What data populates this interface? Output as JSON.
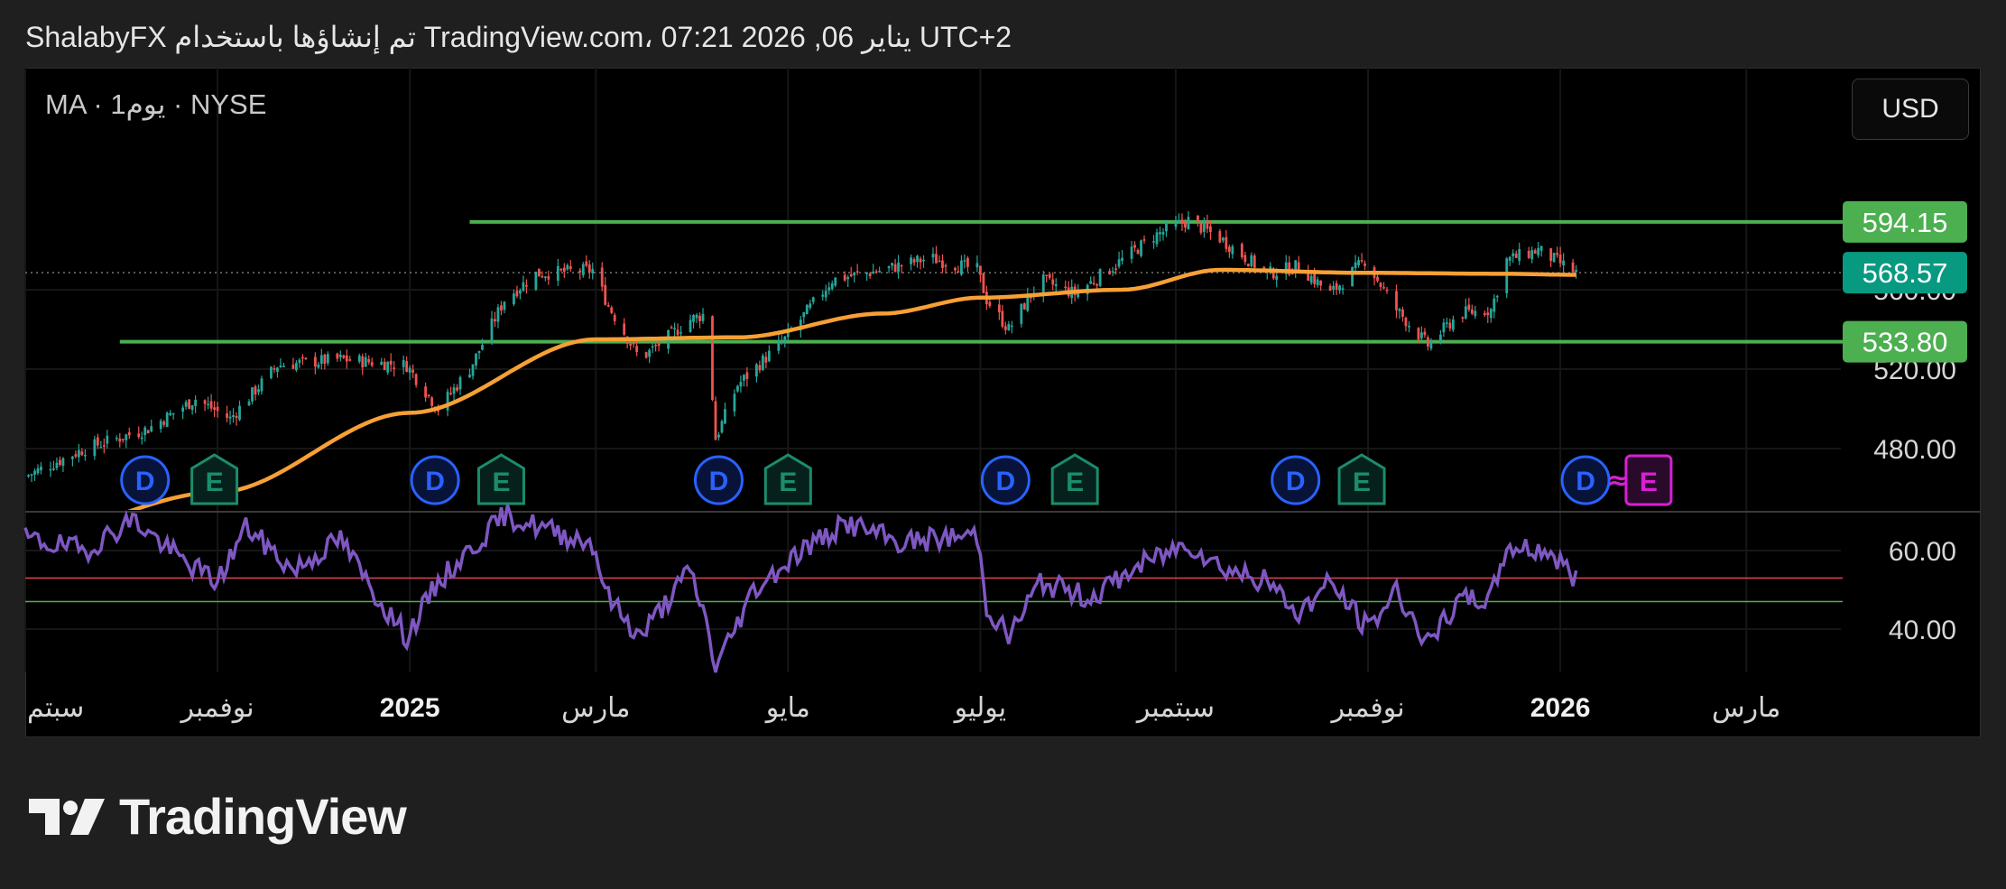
{
  "header": {
    "text": "ShalabyFX تم إنشاؤها باستخدام TradingView.com، 07:21 2026 ,06 يناير UTC+2"
  },
  "symbol": {
    "text": "MA · 1يوم · NYSE"
  },
  "currency": {
    "label": "USD"
  },
  "brand": {
    "name": "TradingView"
  },
  "colors": {
    "up": "#26a69a",
    "down": "#ef5350",
    "ma": "#f7a035",
    "hline": "#4caf50",
    "rsi": "#7e57c2",
    "rsi_upper": "#e0445a",
    "rsi_lower": "#4caf50",
    "current_price_bg": "#089981",
    "level_bg": "#4caf50",
    "dividend": "#2962ff",
    "earnings": "#1b8c6c",
    "earnings_next": "#d81fd6"
  },
  "chart_data": {
    "type": "candlestick",
    "symbol": "MA",
    "interval": "1D",
    "exchange": "NYSE",
    "x_range": [
      "2024-09-01",
      "2026-03-31"
    ],
    "x_ticks": [
      {
        "date": "2024-09-01",
        "label": "سبتم"
      },
      {
        "date": "2024-11-01",
        "label": "نوفمبر"
      },
      {
        "date": "2025-01-01",
        "label": "2025"
      },
      {
        "date": "2025-03-01",
        "label": "مارس"
      },
      {
        "date": "2025-05-01",
        "label": "مايو"
      },
      {
        "date": "2025-07-01",
        "label": "يوليو"
      },
      {
        "date": "2025-09-01",
        "label": "سبتمبر"
      },
      {
        "date": "2025-11-01",
        "label": "نوفمبر"
      },
      {
        "date": "2026-01-01",
        "label": "2026"
      },
      {
        "date": "2026-03-01",
        "label": "مارس"
      }
    ],
    "price_axis": {
      "ticks": [
        480.0,
        520.0,
        560.0
      ],
      "tick_labels": [
        "480.00",
        "520.00",
        "560.00"
      ]
    },
    "price_path": [
      [
        "2024-09-01",
        466
      ],
      [
        "2024-09-20",
        480
      ],
      [
        "2024-10-10",
        490
      ],
      [
        "2024-10-25",
        505
      ],
      [
        "2024-11-05",
        495
      ],
      [
        "2024-11-20",
        522
      ],
      [
        "2024-12-10",
        525
      ],
      [
        "2024-12-31",
        522
      ],
      [
        "2025-01-10",
        500
      ],
      [
        "2025-01-20",
        520
      ],
      [
        "2025-01-31",
        555
      ],
      [
        "2025-02-10",
        568
      ],
      [
        "2025-02-28",
        570
      ],
      [
        "2025-03-05",
        552
      ],
      [
        "2025-03-15",
        525
      ],
      [
        "2025-03-31",
        545
      ],
      [
        "2025-04-05",
        548
      ],
      [
        "2025-04-08",
        485
      ],
      [
        "2025-04-15",
        512
      ],
      [
        "2025-04-30",
        535
      ],
      [
        "2025-05-15",
        565
      ],
      [
        "2025-05-31",
        570
      ],
      [
        "2025-06-15",
        576
      ],
      [
        "2025-06-30",
        570
      ],
      [
        "2025-07-03",
        555
      ],
      [
        "2025-07-10",
        540
      ],
      [
        "2025-07-20",
        565
      ],
      [
        "2025-07-31",
        558
      ],
      [
        "2025-08-15",
        575
      ],
      [
        "2025-08-25",
        587
      ],
      [
        "2025-09-05",
        595
      ],
      [
        "2025-09-15",
        586
      ],
      [
        "2025-09-30",
        568
      ],
      [
        "2025-10-10",
        572
      ],
      [
        "2025-10-20",
        558
      ],
      [
        "2025-10-31",
        575
      ],
      [
        "2025-11-10",
        550
      ],
      [
        "2025-11-20",
        532
      ],
      [
        "2025-11-30",
        548
      ],
      [
        "2025-12-10",
        550
      ],
      [
        "2025-12-15",
        575
      ],
      [
        "2025-12-25",
        580
      ],
      [
        "2026-01-06",
        568.57
      ]
    ],
    "moving_average_path": [
      [
        "2024-09-01",
        436
      ],
      [
        "2024-11-01",
        458
      ],
      [
        "2025-01-01",
        498
      ],
      [
        "2025-03-01",
        535
      ],
      [
        "2025-04-15",
        536
      ],
      [
        "2025-05-31",
        548
      ],
      [
        "2025-07-01",
        556
      ],
      [
        "2025-08-15",
        560
      ],
      [
        "2025-09-15",
        570
      ],
      [
        "2025-10-31",
        568.5
      ],
      [
        "2025-12-15",
        568
      ],
      [
        "2026-01-06",
        567.5
      ]
    ],
    "horizontal_levels": [
      {
        "price": 594.15,
        "label": "594.15",
        "from": "2025-01-20"
      },
      {
        "price": 533.8,
        "label": "533.80",
        "from": "2024-10-01"
      }
    ],
    "last_price": {
      "price": 568.57,
      "label": "568.57"
    },
    "events": [
      {
        "type": "D",
        "date": "2024-10-09"
      },
      {
        "type": "E",
        "date": "2024-10-31"
      },
      {
        "type": "D",
        "date": "2025-01-09"
      },
      {
        "type": "E",
        "date": "2025-01-30"
      },
      {
        "type": "D",
        "date": "2025-04-09"
      },
      {
        "type": "E",
        "date": "2025-05-01"
      },
      {
        "type": "D",
        "date": "2025-07-09"
      },
      {
        "type": "E",
        "date": "2025-07-31"
      },
      {
        "type": "D",
        "date": "2025-10-09"
      },
      {
        "type": "E",
        "date": "2025-10-30"
      },
      {
        "type": "D",
        "date": "2026-01-09"
      },
      {
        "type": "E",
        "date": "2026-01-29",
        "upcoming": true
      }
    ],
    "rsi": {
      "ticks": [
        40.0,
        60.0
      ],
      "tick_labels": [
        "40.00",
        "60.00"
      ],
      "upper_line": 53,
      "lower_line": 47,
      "path": [
        [
          "2024-09-01",
          63
        ],
        [
          "2024-09-20",
          60
        ],
        [
          "2024-10-05",
          68
        ],
        [
          "2024-10-20",
          58
        ],
        [
          "2024-11-01",
          52
        ],
        [
          "2024-11-10",
          66
        ],
        [
          "2024-11-25",
          55
        ],
        [
          "2024-12-10",
          63
        ],
        [
          "2024-12-20",
          50
        ],
        [
          "2024-12-31",
          38
        ],
        [
          "2025-01-10",
          52
        ],
        [
          "2025-01-20",
          60
        ],
        [
          "2025-01-31",
          69
        ],
        [
          "2025-02-15",
          65
        ],
        [
          "2025-02-28",
          62
        ],
        [
          "2025-03-05",
          48
        ],
        [
          "2025-03-15",
          38
        ],
        [
          "2025-03-31",
          55
        ],
        [
          "2025-04-05",
          42
        ],
        [
          "2025-04-08",
          30
        ],
        [
          "2025-04-20",
          50
        ],
        [
          "2025-05-05",
          60
        ],
        [
          "2025-05-20",
          67
        ],
        [
          "2025-06-05",
          62
        ],
        [
          "2025-06-30",
          64
        ],
        [
          "2025-07-03",
          46
        ],
        [
          "2025-07-10",
          38
        ],
        [
          "2025-07-20",
          52
        ],
        [
          "2025-08-05",
          48
        ],
        [
          "2025-08-20",
          56
        ],
        [
          "2025-09-05",
          62
        ],
        [
          "2025-09-15",
          56
        ],
        [
          "2025-09-30",
          52
        ],
        [
          "2025-10-10",
          44
        ],
        [
          "2025-10-20",
          52
        ],
        [
          "2025-11-01",
          40
        ],
        [
          "2025-11-10",
          50
        ],
        [
          "2025-11-20",
          36
        ],
        [
          "2025-11-30",
          47
        ],
        [
          "2025-12-10",
          48
        ],
        [
          "2025-12-15",
          61
        ],
        [
          "2025-12-28",
          60
        ],
        [
          "2026-01-06",
          53
        ]
      ]
    }
  }
}
